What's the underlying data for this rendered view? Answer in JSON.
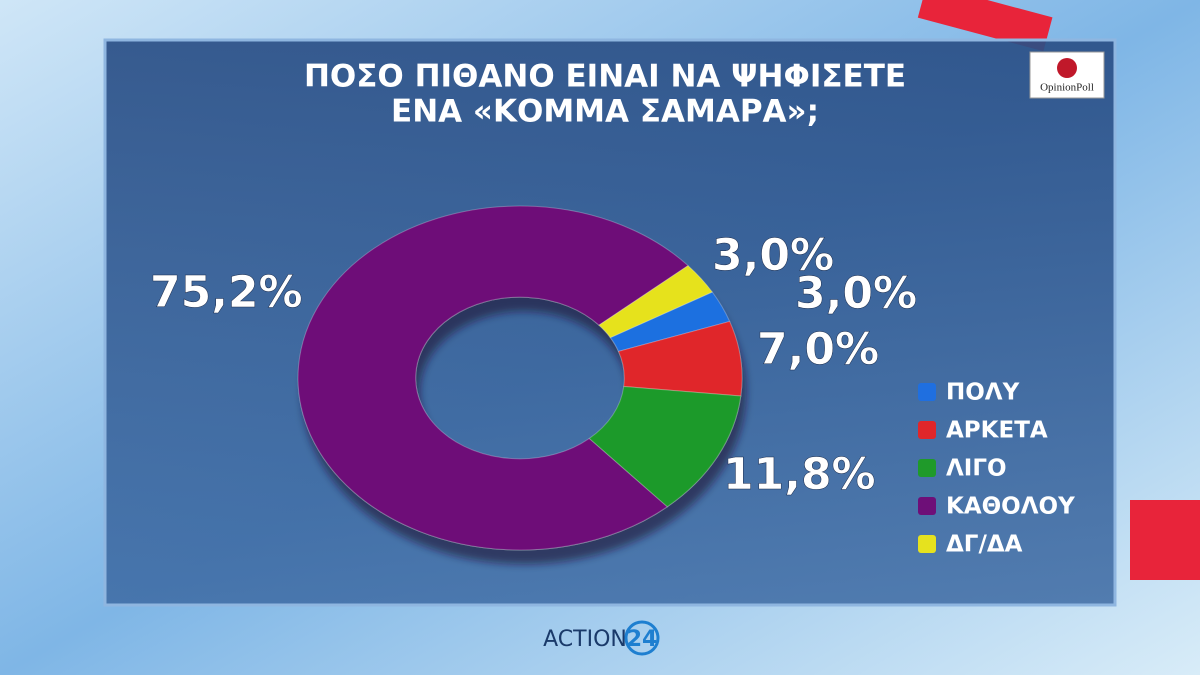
{
  "chart_data": {
    "type": "donut",
    "title": [
      "ΠΟΣΟ ΠΙΘΑΝΟ ΕΙΝΑΙ ΝΑ ΨΗΦΙΣΕΤΕ",
      "ΕΝΑ «ΚΟΜΜΑ ΣΑΜΑΡΑ»;"
    ],
    "categories": [
      "ΠΟΛΥ",
      "ΑΡΚΕΤΑ",
      "ΛΙΓΟ",
      "ΚΑΘΟΛΟΥ",
      "ΔΓ/ΔΑ"
    ],
    "values": [
      3.0,
      7.0,
      11.8,
      75.2,
      3.0
    ],
    "value_labels": [
      "3,0%",
      "7,0%",
      "11,8%",
      "75,2%",
      "3,0%"
    ],
    "colors": [
      "#1f6fe0",
      "#e0262a",
      "#1f9a2a",
      "#6e0f78",
      "#e6e21e"
    ],
    "legend": "right"
  },
  "branding": {
    "pollster": "OpinionPoll",
    "channel": "ACTION",
    "channel_number": "24"
  }
}
